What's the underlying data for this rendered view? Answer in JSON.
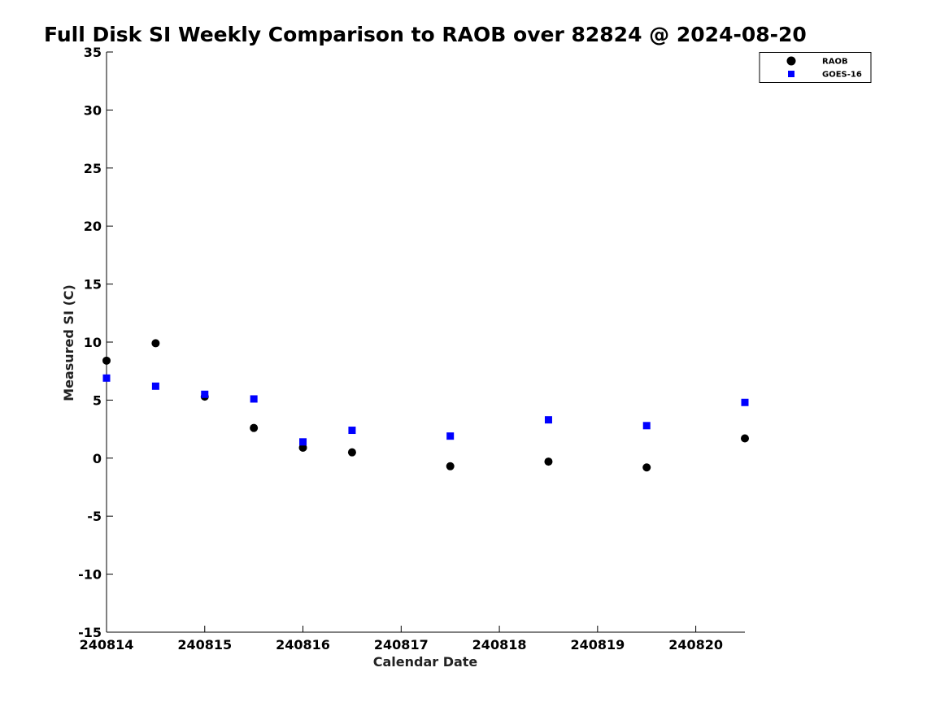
{
  "chart_data": {
    "type": "scatter",
    "title": "Full Disk SI Weekly Comparison to RAOB over 82824 @ 2024-08-20",
    "xlabel": "Calendar Date",
    "ylabel": "Measured SI (C)",
    "xlim": [
      "2024-08-14T00:00",
      "2024-08-20T12:00"
    ],
    "ylim": [
      -15,
      35
    ],
    "yticks": [
      35,
      30,
      25,
      20,
      15,
      10,
      5,
      0,
      -5,
      -10,
      -15
    ],
    "xticks": [
      {
        "date": "2024-08-14T00:00",
        "label": "240814"
      },
      {
        "date": "2024-08-15T00:00",
        "label": "240815"
      },
      {
        "date": "2024-08-16T00:00",
        "label": "240816"
      },
      {
        "date": "2024-08-17T00:00",
        "label": "240817"
      },
      {
        "date": "2024-08-18T00:00",
        "label": "240818"
      },
      {
        "date": "2024-08-19T00:00",
        "label": "240819"
      },
      {
        "date": "2024-08-20T00:00",
        "label": "240820"
      }
    ],
    "grid": false,
    "legend_position": "top-right",
    "series": [
      {
        "name": "RAOB",
        "marker": "circle",
        "color": "#000000",
        "points": [
          {
            "x": "2024-08-14T00:00",
            "y": 8.4
          },
          {
            "x": "2024-08-14T12:00",
            "y": 9.9
          },
          {
            "x": "2024-08-15T00:00",
            "y": 5.3
          },
          {
            "x": "2024-08-15T12:00",
            "y": 2.6
          },
          {
            "x": "2024-08-16T00:00",
            "y": 0.9
          },
          {
            "x": "2024-08-16T12:00",
            "y": 0.5
          },
          {
            "x": "2024-08-17T12:00",
            "y": -0.7
          },
          {
            "x": "2024-08-18T12:00",
            "y": -0.3
          },
          {
            "x": "2024-08-19T12:00",
            "y": -0.8
          },
          {
            "x": "2024-08-20T12:00",
            "y": 1.7
          }
        ]
      },
      {
        "name": "GOES-16",
        "marker": "square",
        "color": "#0000ff",
        "points": [
          {
            "x": "2024-08-14T00:00",
            "y": 6.9
          },
          {
            "x": "2024-08-14T12:00",
            "y": 6.2
          },
          {
            "x": "2024-08-15T00:00",
            "y": 5.5
          },
          {
            "x": "2024-08-15T12:00",
            "y": 5.1
          },
          {
            "x": "2024-08-16T00:00",
            "y": 1.4
          },
          {
            "x": "2024-08-16T12:00",
            "y": 2.4
          },
          {
            "x": "2024-08-17T12:00",
            "y": 1.9
          },
          {
            "x": "2024-08-18T12:00",
            "y": 3.3
          },
          {
            "x": "2024-08-19T12:00",
            "y": 2.8
          },
          {
            "x": "2024-08-20T12:00",
            "y": 4.8
          }
        ]
      }
    ]
  }
}
